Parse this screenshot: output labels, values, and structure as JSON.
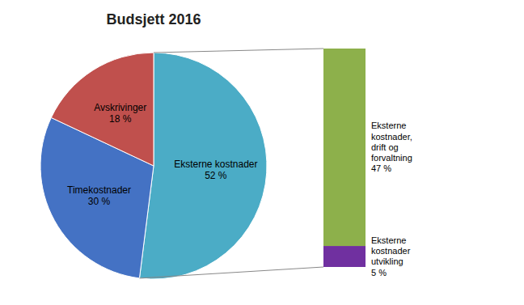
{
  "chart_data": [
    {
      "type": "pie",
      "title": "Budsjett 2016",
      "categories": [
        "Eksterne kostnader",
        "Timekostnader",
        "Avskrivinger"
      ],
      "values": [
        52,
        30,
        18
      ],
      "value_labels": [
        "52 %",
        "30 %",
        "18 %"
      ],
      "colors": [
        "#4bacc6",
        "#4472c4",
        "#c0504d"
      ],
      "data_labels": true
    },
    {
      "type": "bar",
      "stacked": true,
      "categories": [
        null
      ],
      "series": [
        {
          "name": "Eksterne\nkostnader\nutvikling",
          "color": "#7030a0",
          "values": [
            5
          ],
          "value_labels": [
            "5 %"
          ]
        },
        {
          "name": "Eksterne\nkostnader,\ndrift og\nforvaltning",
          "color": "#8db04b",
          "values": [
            47
          ],
          "value_labels": [
            "47 %"
          ]
        }
      ],
      "ylim": [
        0,
        52
      ],
      "tick_labels": false,
      "data_labels": true
    }
  ]
}
